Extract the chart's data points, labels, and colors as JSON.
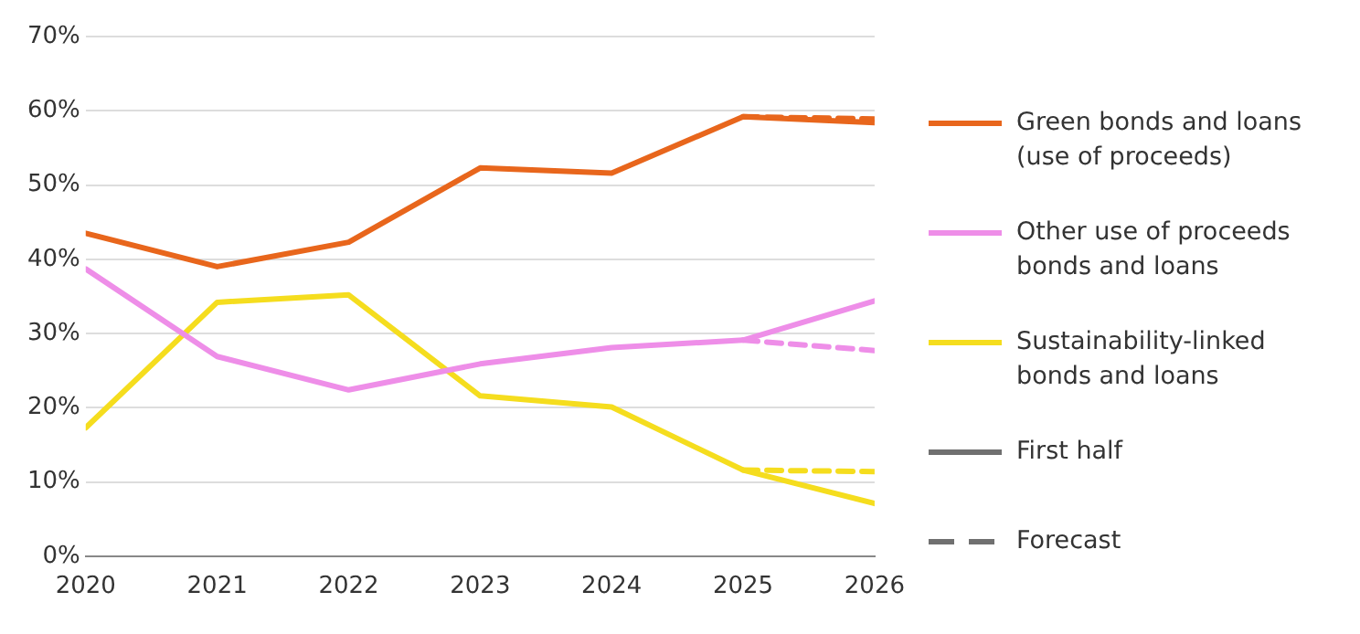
{
  "chart_data": {
    "type": "line",
    "x": [
      2020,
      2021,
      2022,
      2023,
      2024,
      2025,
      2026
    ],
    "series": [
      {
        "name": "Green bonds and loans (use of proceeds)",
        "color": "#e8661c",
        "values": [
          43.5,
          39,
          42.3,
          52.3,
          51.6,
          59.2,
          58.4
        ]
      },
      {
        "name": "Other use of proceeds bonds and loans",
        "color": "#ee8ee8",
        "values": [
          38.7,
          26.9,
          22.4,
          25.9,
          28.1,
          29.1,
          34.4
        ]
      },
      {
        "name": "Sustainability-linked bonds and loans",
        "color": "#f5dd1e",
        "values": [
          17.3,
          34.2,
          35.2,
          21.6,
          20.1,
          11.6,
          7.1
        ]
      },
      {
        "color": "#e8661c",
        "values": [
          null,
          null,
          null,
          null,
          null,
          59.2,
          58.9
        ],
        "line_style": "dashed"
      },
      {
        "color": "#ee8ee8",
        "values": [
          null,
          null,
          null,
          null,
          null,
          29.1,
          27.7
        ],
        "line_style": "dashed"
      },
      {
        "color": "#f5dd1e",
        "values": [
          null,
          null,
          null,
          null,
          null,
          11.6,
          11.4
        ],
        "line_style": "dashed"
      }
    ],
    "xlim": [
      2020,
      2026
    ],
    "xticks": [
      2020,
      2021,
      2022,
      2023,
      2024,
      2025,
      2026
    ],
    "ylim": [
      0,
      70
    ],
    "yticks": [
      {
        "value": 0,
        "label": "0%"
      },
      {
        "value": 10,
        "label": "10%"
      },
      {
        "value": 20,
        "label": "20%"
      },
      {
        "value": 30,
        "label": "30%"
      },
      {
        "value": 40,
        "label": "40%"
      },
      {
        "value": 50,
        "label": "50%"
      },
      {
        "value": 60,
        "label": "60%"
      },
      {
        "value": 70,
        "label": "70%"
      }
    ],
    "grid": "y",
    "legend": "right",
    "marker": "none",
    "line_style": "solid",
    "annotations": [
      "First half",
      "Forecast"
    ]
  }
}
